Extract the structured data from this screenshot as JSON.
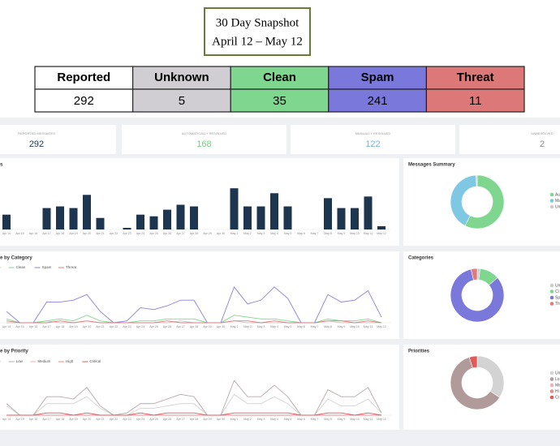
{
  "header": {
    "title": "30 Day Snapshot",
    "subtitle": "April 12 – May 12"
  },
  "summary_table": {
    "headers": [
      "Reported",
      "Unknown",
      "Clean",
      "Spam",
      "Threat"
    ],
    "values": [
      292,
      5,
      35,
      241,
      11
    ],
    "colors": [
      "#ffffff",
      "#d0ced3",
      "#7fd68f",
      "#7b78dc",
      "#dc7878"
    ]
  },
  "stats": [
    {
      "label": "REPORTED MESSAGES",
      "value": 292,
      "color": "#1e3550"
    },
    {
      "label": "AUTOMATICALLY RESOLVED",
      "value": 168,
      "color": "#6fcf7f"
    },
    {
      "label": "MANUALLY RESOLVED",
      "value": 122,
      "color": "#6fb8dc"
    },
    {
      "label": "UNRESOLVED",
      "value": 2,
      "color": "#888888"
    }
  ],
  "dates": [
    "Apr 14",
    "Apr 15",
    "Apr 16",
    "Apr 17",
    "Apr 18",
    "Apr 19",
    "Apr 20",
    "Apr 21",
    "Apr 22",
    "Apr 23",
    "Apr 24",
    "Apr 25",
    "Apr 26",
    "Apr 27",
    "Apr 28",
    "Apr 29",
    "Apr 30",
    "May 1",
    "May 2",
    "May 3",
    "May 4",
    "May 5",
    "May 6",
    "May 7",
    "May 8",
    "May 9",
    "May 10",
    "May 11",
    "May 12"
  ],
  "charts": [
    {
      "type": "bar",
      "title": "s",
      "color": "#1e3550",
      "ylim": [
        0,
        30
      ],
      "values": [
        9,
        0,
        0,
        13,
        14,
        13,
        21,
        7,
        0,
        1,
        9,
        8,
        12,
        15,
        14,
        0,
        0,
        25,
        14,
        14,
        22,
        14,
        0,
        0,
        19,
        13,
        13,
        20,
        2
      ]
    },
    {
      "type": "line",
      "title": "e by Category",
      "ylim": [
        0,
        25
      ],
      "series": [
        {
          "name": "e",
          "color": "#c8c8c8",
          "values": [
            0,
            0,
            0,
            1,
            0,
            0,
            1,
            0,
            0,
            0,
            0,
            0,
            0,
            1,
            0,
            0,
            0,
            1,
            0,
            0,
            0,
            0,
            0,
            0,
            1,
            0,
            0,
            0,
            0
          ]
        },
        {
          "name": "Clean",
          "color": "#7fd68f",
          "values": [
            2,
            0,
            0,
            1,
            2,
            1,
            4,
            1,
            0,
            0,
            1,
            1,
            2,
            2,
            2,
            0,
            0,
            4,
            3,
            2,
            2,
            1,
            0,
            0,
            2,
            1,
            1,
            2,
            0
          ]
        },
        {
          "name": "Spam",
          "color": "#8b80db",
          "values": [
            6,
            0,
            0,
            11,
            11,
            12,
            15,
            6,
            0,
            1,
            8,
            7,
            9,
            12,
            12,
            0,
            0,
            19,
            10,
            12,
            19,
            13,
            0,
            0,
            15,
            11,
            12,
            17,
            3
          ]
        },
        {
          "name": "Threat",
          "color": "#e07b7b",
          "values": [
            1,
            0,
            0,
            0,
            1,
            0,
            1,
            0,
            0,
            0,
            0,
            0,
            1,
            0,
            0,
            0,
            0,
            1,
            1,
            0,
            1,
            0,
            0,
            0,
            1,
            1,
            0,
            1,
            0
          ]
        }
      ]
    },
    {
      "type": "line",
      "title": "e by Priority",
      "ylim": [
        0,
        20
      ],
      "series": [
        {
          "name": "e",
          "color": "#d3d3d3",
          "values": [
            4,
            0,
            0,
            5,
            5,
            5,
            8,
            3,
            0,
            0,
            3,
            3,
            4,
            5,
            5,
            0,
            0,
            9,
            5,
            5,
            8,
            5,
            0,
            0,
            7,
            4,
            4,
            7,
            1
          ]
        },
        {
          "name": "Low",
          "color": "#b8a8a8",
          "values": [
            5,
            0,
            0,
            8,
            8,
            7,
            12,
            4,
            0,
            1,
            5,
            5,
            7,
            9,
            8,
            0,
            0,
            15,
            8,
            8,
            13,
            8,
            0,
            0,
            11,
            8,
            8,
            12,
            1
          ]
        },
        {
          "name": "Medium",
          "color": "#f0b0b0",
          "values": [
            0,
            0,
            0,
            0,
            0,
            0,
            0,
            0,
            0,
            0,
            0,
            0,
            0,
            0,
            0,
            0,
            0,
            0,
            0,
            0,
            0,
            0,
            0,
            0,
            0,
            0,
            0,
            0,
            0
          ]
        },
        {
          "name": "High",
          "color": "#ee8a8a",
          "values": [
            0,
            0,
            0,
            0,
            0,
            0,
            0,
            0,
            0,
            0,
            0,
            0,
            0,
            0,
            0,
            0,
            0,
            0,
            0,
            0,
            0,
            0,
            0,
            0,
            0,
            0,
            0,
            0,
            0
          ]
        },
        {
          "name": "Critical",
          "color": "#e05a5a",
          "values": [
            0,
            0,
            0,
            1,
            1,
            0,
            1,
            0,
            0,
            0,
            1,
            0,
            1,
            1,
            1,
            0,
            0,
            1,
            1,
            1,
            1,
            1,
            0,
            0,
            1,
            1,
            0,
            1,
            0
          ]
        }
      ]
    },
    {
      "type": "pie",
      "title": "Messages Summary",
      "labels": [
        "Au",
        "Ma",
        "Un"
      ],
      "values": [
        168,
        122,
        2
      ],
      "colors": [
        "#7fd68f",
        "#7ec8e3",
        "#cccccc"
      ]
    },
    {
      "type": "pie",
      "title": "Categories",
      "labels": [
        "Un",
        "Cl",
        "Sp",
        "Th"
      ],
      "values": [
        5,
        35,
        241,
        11
      ],
      "colors": [
        "#cccccc",
        "#7fd68f",
        "#7b78dc",
        "#e07b7b"
      ]
    },
    {
      "type": "pie",
      "title": "Priorities",
      "labels": [
        "Un",
        "Lo",
        "Me",
        "Hi",
        "Cr"
      ],
      "values": [
        100,
        178,
        0,
        0,
        14
      ],
      "colors": [
        "#d3d3d3",
        "#b09a9a",
        "#f0b0b0",
        "#ee8a8a",
        "#e05a5a"
      ]
    }
  ]
}
